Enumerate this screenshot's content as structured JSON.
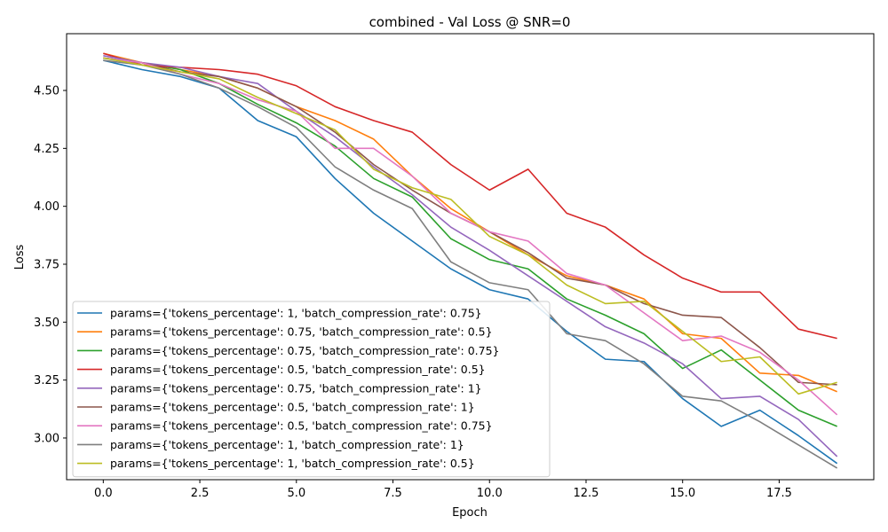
{
  "chart_data": {
    "type": "line",
    "title": "combined - Val Loss @ SNR=0",
    "xlabel": "Epoch",
    "ylabel": "Loss",
    "xlim": [
      -0.95,
      19.95
    ],
    "ylim": [
      2.82,
      4.745
    ],
    "xticks": [
      0.0,
      2.5,
      5.0,
      7.5,
      10.0,
      12.5,
      15.0,
      17.5
    ],
    "xtick_labels": [
      "0.0",
      "2.5",
      "5.0",
      "7.5",
      "10.0",
      "12.5",
      "15.0",
      "17.5"
    ],
    "yticks": [
      3.0,
      3.25,
      3.5,
      3.75,
      4.0,
      4.25,
      4.5
    ],
    "ytick_labels": [
      "3.00",
      "3.25",
      "3.50",
      "3.75",
      "4.00",
      "4.25",
      "4.50"
    ],
    "grid": false,
    "legend_position": "lower-left",
    "x": [
      0,
      1,
      2,
      3,
      4,
      5,
      6,
      7,
      8,
      9,
      10,
      11,
      12,
      13,
      14,
      15,
      16,
      17,
      18,
      19
    ],
    "series": [
      {
        "name": "params={'tokens_percentage': 1, 'batch_compression_rate': 0.75}",
        "color": "#1f77b4",
        "values": [
          4.63,
          4.59,
          4.56,
          4.51,
          4.37,
          4.3,
          4.12,
          3.97,
          3.85,
          3.73,
          3.64,
          3.6,
          3.46,
          3.34,
          3.33,
          3.17,
          3.05,
          3.12,
          3.01,
          2.89
        ]
      },
      {
        "name": "params={'tokens_percentage': 0.75, 'batch_compression_rate': 0.5}",
        "color": "#ff7f0e",
        "values": [
          4.66,
          4.62,
          4.59,
          4.56,
          4.51,
          4.43,
          4.37,
          4.29,
          4.13,
          3.99,
          3.89,
          3.79,
          3.7,
          3.66,
          3.6,
          3.45,
          3.43,
          3.28,
          3.27,
          3.2
        ]
      },
      {
        "name": "params={'tokens_percentage': 0.75, 'batch_compression_rate': 0.75}",
        "color": "#2ca02c",
        "values": [
          4.64,
          4.62,
          4.59,
          4.53,
          4.44,
          4.36,
          4.26,
          4.12,
          4.04,
          3.86,
          3.77,
          3.73,
          3.6,
          3.53,
          3.45,
          3.3,
          3.38,
          3.25,
          3.12,
          3.05
        ]
      },
      {
        "name": "params={'tokens_percentage': 0.5, 'batch_compression_rate': 0.5}",
        "color": "#d62728",
        "values": [
          4.66,
          4.61,
          4.6,
          4.59,
          4.57,
          4.52,
          4.43,
          4.37,
          4.32,
          4.18,
          4.07,
          4.16,
          3.97,
          3.91,
          3.79,
          3.69,
          3.63,
          3.63,
          3.47,
          3.43
        ]
      },
      {
        "name": "params={'tokens_percentage': 0.75, 'batch_compression_rate': 1}",
        "color": "#9467bd",
        "values": [
          4.65,
          4.62,
          4.6,
          4.56,
          4.53,
          4.41,
          4.3,
          4.17,
          4.05,
          3.91,
          3.81,
          3.7,
          3.59,
          3.48,
          3.41,
          3.32,
          3.17,
          3.18,
          3.08,
          2.92
        ]
      },
      {
        "name": "params={'tokens_percentage': 0.5, 'batch_compression_rate': 1}",
        "color": "#8c564b",
        "values": [
          4.64,
          4.62,
          4.58,
          4.56,
          4.51,
          4.43,
          4.32,
          4.18,
          4.07,
          3.97,
          3.89,
          3.8,
          3.69,
          3.66,
          3.58,
          3.53,
          3.52,
          3.39,
          3.24,
          3.23
        ]
      },
      {
        "name": "params={'tokens_percentage': 0.5, 'batch_compression_rate': 0.75}",
        "color": "#e377c2",
        "values": [
          4.64,
          4.62,
          4.57,
          4.53,
          4.46,
          4.41,
          4.25,
          4.25,
          4.13,
          3.97,
          3.89,
          3.85,
          3.71,
          3.66,
          3.54,
          3.42,
          3.44,
          3.37,
          3.25,
          3.1
        ]
      },
      {
        "name": "params={'tokens_percentage': 1, 'batch_compression_rate': 1}",
        "color": "#7f7f7f",
        "values": [
          4.63,
          4.61,
          4.57,
          4.51,
          4.43,
          4.34,
          4.17,
          4.07,
          3.99,
          3.76,
          3.67,
          3.64,
          3.45,
          3.42,
          3.32,
          3.18,
          3.16,
          3.07,
          2.97,
          2.87
        ]
      },
      {
        "name": "params={'tokens_percentage': 1, 'batch_compression_rate': 0.5}",
        "color": "#bcbd22",
        "values": [
          4.64,
          4.61,
          4.58,
          4.55,
          4.47,
          4.4,
          4.33,
          4.16,
          4.08,
          4.03,
          3.87,
          3.79,
          3.66,
          3.58,
          3.59,
          3.46,
          3.33,
          3.35,
          3.19,
          3.24
        ]
      }
    ]
  }
}
